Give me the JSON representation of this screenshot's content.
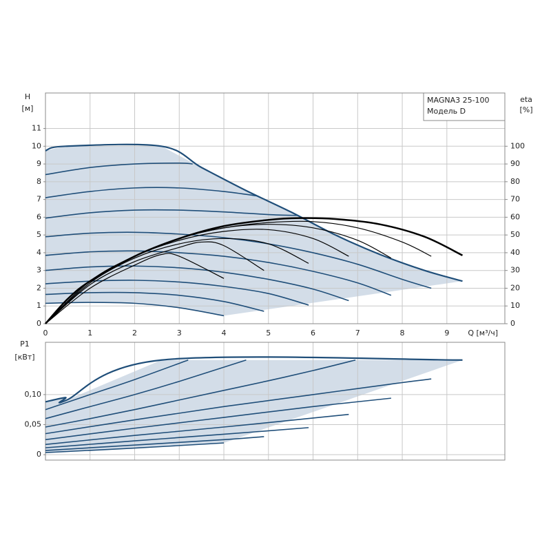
{
  "chart_data": [
    {
      "type": "line",
      "y_label": "H",
      "y_unit": "[м]",
      "y2_label": "eta",
      "y2_unit": "[%]",
      "x_label": "Q [м³/ч]",
      "annotations": [
        "MAGNA3 25-100",
        "Модель D"
      ],
      "xlim": [
        0,
        10.3
      ],
      "xticks": [
        0,
        1,
        2,
        3,
        4,
        5,
        6,
        7,
        8,
        9
      ],
      "ylim": [
        0,
        13
      ],
      "yticks": [
        0,
        1,
        2,
        3,
        4,
        5,
        6,
        7,
        8,
        9,
        10,
        11
      ],
      "y2lim": [
        0,
        130
      ],
      "y2ticks": [
        0,
        10,
        20,
        30,
        40,
        50,
        60,
        70,
        80,
        90,
        100
      ],
      "grid": true,
      "shade": "#d3dde8",
      "series": [
        {
          "color": "#1f4e79",
          "x": [
            0,
            0.45,
            2.6,
            3.5,
            4.5,
            5.5,
            6.5,
            7.5,
            8.5,
            9.35
          ],
          "values": [
            9.75,
            10,
            10,
            8.8,
            7.5,
            6.3,
            5.0,
            3.9,
            3.0,
            2.4
          ]
        },
        {
          "color": "#1f4e79",
          "x": [
            0,
            1,
            2,
            3,
            3.3
          ],
          "values": [
            8.4,
            8.8,
            9.0,
            9.05,
            9.0
          ]
        },
        {
          "color": "#1f4e79",
          "x": [
            0,
            1,
            2,
            3,
            4,
            4.75
          ],
          "values": [
            7.1,
            7.45,
            7.65,
            7.65,
            7.45,
            7.2
          ]
        },
        {
          "color": "#1f4e79",
          "x": [
            0,
            1,
            2,
            3,
            4,
            5,
            5.65
          ],
          "values": [
            5.95,
            6.25,
            6.4,
            6.4,
            6.3,
            6.15,
            6.1
          ]
        },
        {
          "color": "#1f4e79",
          "x": [
            0,
            1,
            2,
            3,
            4,
            5,
            6,
            7,
            8,
            8.65
          ],
          "values": [
            4.9,
            5.1,
            5.15,
            5.05,
            4.85,
            4.5,
            4.0,
            3.35,
            2.5,
            2.0
          ]
        },
        {
          "color": "#1f4e79",
          "x": [
            0,
            1,
            2,
            3,
            4,
            5,
            6,
            7,
            7.75
          ],
          "values": [
            3.85,
            4.05,
            4.1,
            4.0,
            3.8,
            3.45,
            2.95,
            2.3,
            1.6
          ]
        },
        {
          "color": "#1f4e79",
          "x": [
            0,
            1,
            2,
            3,
            4,
            5,
            6,
            6.8
          ],
          "values": [
            3.0,
            3.2,
            3.25,
            3.15,
            2.9,
            2.5,
            1.95,
            1.3
          ]
        },
        {
          "color": "#1f4e79",
          "x": [
            0,
            1,
            2,
            3,
            4,
            5,
            5.9
          ],
          "values": [
            2.25,
            2.4,
            2.45,
            2.35,
            2.1,
            1.7,
            1.05
          ]
        },
        {
          "color": "#1f4e79",
          "x": [
            0,
            1,
            2,
            3,
            4,
            4.9
          ],
          "values": [
            1.65,
            1.75,
            1.75,
            1.6,
            1.25,
            0.7
          ]
        },
        {
          "color": "#1f4e79",
          "x": [
            0,
            1,
            2,
            3,
            4
          ],
          "values": [
            1.15,
            1.2,
            1.15,
            0.9,
            0.45
          ]
        },
        {
          "color": "#000000",
          "axis": "y2",
          "x": [
            0,
            0.5,
            1,
            2,
            3,
            4,
            5,
            5.7,
            6.5,
            7.5,
            8.5,
            9.35
          ],
          "values": [
            0,
            14,
            24,
            38,
            48,
            55,
            58.5,
            59.5,
            59,
            56,
            49,
            38.5
          ]
        },
        {
          "color": "#000000",
          "axis": "y2",
          "x": [
            0,
            1,
            2,
            3,
            4,
            5,
            6,
            7,
            8,
            8.65
          ],
          "values": [
            0,
            24,
            38,
            48,
            54,
            57,
            57.5,
            54,
            46,
            38
          ]
        },
        {
          "color": "#000000",
          "axis": "y2",
          "x": [
            0,
            1,
            2,
            3,
            4,
            5,
            6,
            7,
            7.75
          ],
          "values": [
            0,
            24,
            38,
            48,
            54,
            56,
            54,
            47,
            37
          ]
        },
        {
          "color": "#000000",
          "axis": "y2",
          "x": [
            0,
            1,
            2,
            3,
            4,
            5,
            6,
            6.8
          ],
          "values": [
            0,
            24,
            38,
            47,
            52,
            53,
            48,
            38
          ]
        },
        {
          "color": "#000000",
          "axis": "y2",
          "x": [
            0,
            1,
            2,
            3,
            4,
            5,
            5.9
          ],
          "values": [
            0,
            23,
            37,
            45,
            48,
            45,
            34
          ]
        },
        {
          "color": "#000000",
          "axis": "y2",
          "x": [
            0,
            1,
            2,
            3,
            3.5,
            4,
            4.9
          ],
          "values": [
            0,
            22,
            35,
            43,
            46,
            44,
            30
          ]
        },
        {
          "color": "#000000",
          "axis": "y2",
          "x": [
            0,
            1,
            2,
            2.6,
            3,
            4
          ],
          "values": [
            0,
            20,
            33,
            39,
            38,
            25.5
          ]
        }
      ]
    },
    {
      "type": "line",
      "y_label": "P1",
      "y_unit": "[кВт]",
      "xlim": [
        0,
        10.3
      ],
      "ylim": [
        -0.009,
        0.187
      ],
      "yticks": [
        0,
        {
          "value": 0.05,
          "label": "0,05"
        },
        {
          "value": 0.1,
          "label": "0,10"
        }
      ],
      "grid": true,
      "shade": "#d3dde8",
      "series": [
        {
          "color": "#1f4e79",
          "x": [
            0,
            0.45,
            0.45,
            2.6,
            9.35
          ],
          "values": [
            0.088,
            0.095,
            0.09,
            0.1575,
            0.1575
          ]
        },
        {
          "color": "#1f4e79",
          "x": [
            0,
            1,
            2,
            3.2
          ],
          "values": [
            0.075,
            0.1,
            0.125,
            0.1575
          ]
        },
        {
          "color": "#1f4e79",
          "x": [
            0,
            1,
            2,
            3,
            4.5
          ],
          "values": [
            0.06,
            0.08,
            0.1,
            0.122,
            0.1575
          ]
        },
        {
          "color": "#1f4e79",
          "x": [
            0,
            1,
            2,
            3,
            4,
            5,
            6,
            6.95
          ],
          "values": [
            0.046,
            0.06,
            0.075,
            0.091,
            0.107,
            0.123,
            0.14,
            0.1575
          ]
        },
        {
          "color": "#1f4e79",
          "x": [
            0,
            2,
            4,
            6,
            8,
            8.65
          ],
          "values": [
            0.035,
            0.058,
            0.08,
            0.1,
            0.12,
            0.126
          ]
        },
        {
          "color": "#1f4e79",
          "x": [
            0,
            2,
            4,
            6,
            7.75
          ],
          "values": [
            0.025,
            0.044,
            0.062,
            0.08,
            0.094
          ]
        },
        {
          "color": "#1f4e79",
          "x": [
            0,
            2,
            4,
            6,
            6.8
          ],
          "values": [
            0.017,
            0.032,
            0.046,
            0.061,
            0.067
          ]
        },
        {
          "color": "#1f4e79",
          "x": [
            0,
            2,
            4,
            5.9
          ],
          "values": [
            0.0115,
            0.023,
            0.034,
            0.045
          ]
        },
        {
          "color": "#1f4e79",
          "x": [
            0,
            2,
            4,
            4.9
          ],
          "values": [
            0.007,
            0.016,
            0.025,
            0.03
          ]
        },
        {
          "color": "#1f4e79",
          "x": [
            0,
            2,
            4
          ],
          "values": [
            0.0035,
            0.011,
            0.0195
          ]
        }
      ]
    }
  ]
}
